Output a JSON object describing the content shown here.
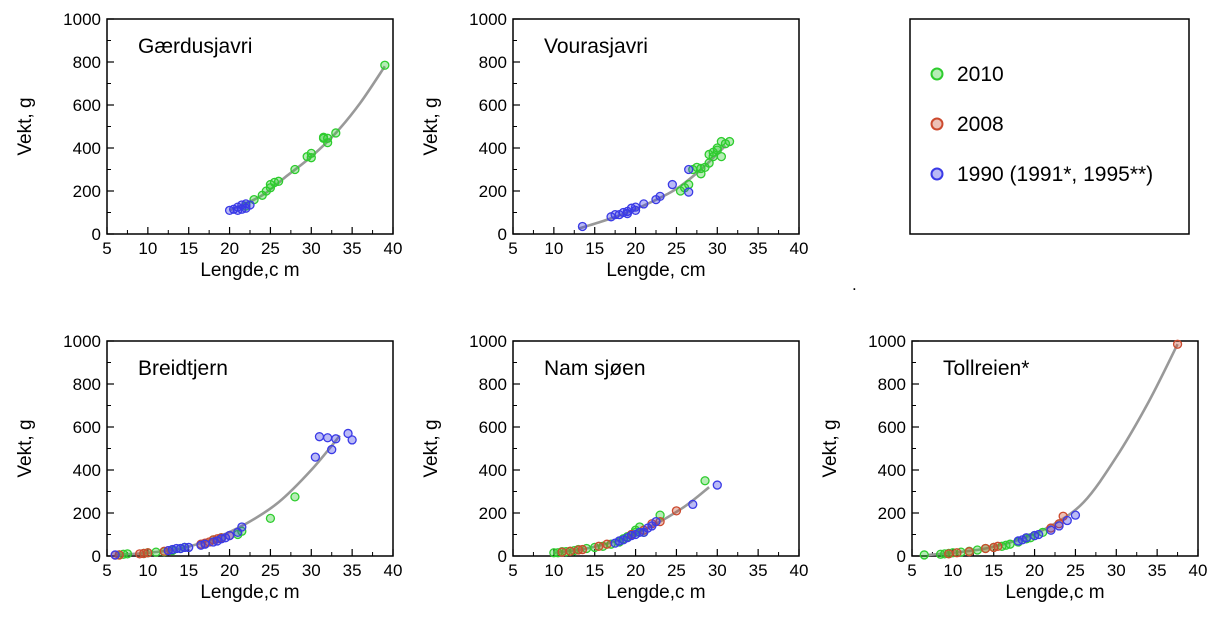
{
  "colors": {
    "2010": "#2ecc2e",
    "2008": "#cc4a2e",
    "1990": "#3a3ae6",
    "fit": "#999999"
  },
  "legend": {
    "items": [
      {
        "key": "2010",
        "label": "2010"
      },
      {
        "key": "2008",
        "label": "2008"
      },
      {
        "key": "1990",
        "label": "1990 (1991*, 1995**)"
      }
    ]
  },
  "stray_mark": ".",
  "chart_data": [
    {
      "type": "scatter",
      "title": "Gærdusjavri",
      "xlabel": "Lengde,c m",
      "ylabel": "Vekt, g",
      "xlim": [
        5,
        40
      ],
      "ylim": [
        0,
        1000
      ],
      "xticks": [
        "5",
        "10",
        "15",
        "20",
        "25",
        "30",
        "35",
        "40"
      ],
      "yticks": [
        "0",
        "200",
        "400",
        "600",
        "800",
        "1000"
      ],
      "fit": [
        [
          20,
          110
        ],
        [
          24,
          180
        ],
        [
          27,
          270
        ],
        [
          30,
          360
        ],
        [
          33,
          470
        ],
        [
          36,
          610
        ],
        [
          39,
          780
        ]
      ],
      "series": [
        {
          "key": "2010",
          "points": [
            [
              22,
              130
            ],
            [
              23,
              160
            ],
            [
              24,
              180
            ],
            [
              24.5,
              200
            ],
            [
              25,
              215
            ],
            [
              25,
              230
            ],
            [
              25.5,
              240
            ],
            [
              26,
              245
            ],
            [
              28,
              300
            ],
            [
              29.5,
              360
            ],
            [
              30,
              375
            ],
            [
              30,
              355
            ],
            [
              31.5,
              450
            ],
            [
              31.5,
              445
            ],
            [
              32,
              425
            ],
            [
              32,
              445
            ],
            [
              33,
              470
            ],
            [
              39,
              785
            ]
          ]
        },
        {
          "key": "1990",
          "points": [
            [
              20,
              110
            ],
            [
              20.5,
              115
            ],
            [
              21,
              125
            ],
            [
              21,
              110
            ],
            [
              21.5,
              115
            ],
            [
              21.5,
              135
            ],
            [
              22,
              120
            ],
            [
              22,
              140
            ],
            [
              22.5,
              135
            ]
          ]
        }
      ]
    },
    {
      "type": "scatter",
      "title": "Vourasjavri",
      "xlabel": "Lengde, cm",
      "ylabel": "Vekt, g",
      "xlim": [
        5,
        40
      ],
      "ylim": [
        0,
        1000
      ],
      "xticks": [
        "5",
        "10",
        "15",
        "20",
        "25",
        "30",
        "35",
        "40"
      ],
      "yticks": [
        "0",
        "200",
        "400",
        "600",
        "800",
        "1000"
      ],
      "fit": [
        [
          13,
          25
        ],
        [
          16,
          60
        ],
        [
          19,
          100
        ],
        [
          22,
          150
        ],
        [
          25,
          210
        ],
        [
          28,
          300
        ],
        [
          31,
          410
        ]
      ],
      "series": [
        {
          "key": "2010",
          "points": [
            [
              25.5,
              200
            ],
            [
              26,
              215
            ],
            [
              26.5,
              230
            ],
            [
              27,
              300
            ],
            [
              27.5,
              310
            ],
            [
              28,
              280
            ],
            [
              28,
              305
            ],
            [
              28.5,
              310
            ],
            [
              29,
              330
            ],
            [
              29,
              370
            ],
            [
              29.5,
              380
            ],
            [
              29.5,
              360
            ],
            [
              30,
              390
            ],
            [
              30,
              400
            ],
            [
              30.5,
              430
            ],
            [
              30.5,
              360
            ],
            [
              31,
              420
            ],
            [
              31.5,
              430
            ]
          ]
        },
        {
          "key": "1990",
          "points": [
            [
              13.5,
              35
            ],
            [
              17,
              80
            ],
            [
              17.5,
              90
            ],
            [
              18,
              90
            ],
            [
              18.5,
              100
            ],
            [
              19,
              95
            ],
            [
              19,
              105
            ],
            [
              19.5,
              120
            ],
            [
              20,
              110
            ],
            [
              20,
              125
            ],
            [
              21,
              140
            ],
            [
              22.5,
              160
            ],
            [
              23,
              175
            ],
            [
              24.5,
              230
            ],
            [
              26.5,
              300
            ],
            [
              26.5,
              195
            ]
          ]
        }
      ]
    },
    {
      "type": "scatter",
      "title": "Breidtjern",
      "xlabel": "Lengde,c m",
      "ylabel": "Vekt, g",
      "xlim": [
        5,
        40
      ],
      "ylim": [
        0,
        1000
      ],
      "xticks": [
        "5",
        "10",
        "15",
        "20",
        "25",
        "30",
        "35",
        "40"
      ],
      "yticks": [
        "0",
        "200",
        "400",
        "600",
        "800",
        "1000"
      ],
      "fit": [
        [
          6,
          5
        ],
        [
          10,
          15
        ],
        [
          14,
          35
        ],
        [
          18,
          80
        ],
        [
          22,
          150
        ],
        [
          26,
          250
        ],
        [
          30,
          400
        ],
        [
          33.5,
          560
        ]
      ],
      "series": [
        {
          "key": "2010",
          "points": [
            [
              6.5,
              5
            ],
            [
              7,
              8
            ],
            [
              7.5,
              10
            ],
            [
              9.5,
              12
            ],
            [
              10,
              15
            ],
            [
              11,
              18
            ],
            [
              12,
              20
            ],
            [
              13,
              25
            ],
            [
              14,
              35
            ],
            [
              14.5,
              40
            ],
            [
              18,
              75
            ],
            [
              19,
              85
            ],
            [
              21,
              100
            ],
            [
              21.5,
              115
            ],
            [
              25,
              175
            ],
            [
              28,
              275
            ]
          ]
        },
        {
          "key": "2008",
          "points": [
            [
              6,
              4
            ],
            [
              6.5,
              5
            ],
            [
              9,
              10
            ],
            [
              9.5,
              12
            ],
            [
              10,
              15
            ],
            [
              12,
              22
            ],
            [
              12.5,
              25
            ],
            [
              16.5,
              55
            ],
            [
              17,
              60
            ],
            [
              17.5,
              65
            ],
            [
              18,
              75
            ],
            [
              18.5,
              80
            ],
            [
              19,
              85
            ],
            [
              20,
              95
            ]
          ]
        },
        {
          "key": "1990",
          "points": [
            [
              6,
              5
            ],
            [
              12.5,
              25
            ],
            [
              13,
              30
            ],
            [
              13.5,
              35
            ],
            [
              14,
              35
            ],
            [
              14.5,
              40
            ],
            [
              15,
              40
            ],
            [
              16.5,
              50
            ],
            [
              17,
              55
            ],
            [
              18,
              65
            ],
            [
              18.5,
              70
            ],
            [
              19,
              80
            ],
            [
              19.5,
              85
            ],
            [
              20,
              95
            ],
            [
              21,
              110
            ],
            [
              21.5,
              135
            ],
            [
              30.5,
              460
            ],
            [
              31,
              555
            ],
            [
              32,
              550
            ],
            [
              32.5,
              495
            ],
            [
              33,
              545
            ],
            [
              34.5,
              570
            ],
            [
              35,
              540
            ]
          ]
        }
      ]
    },
    {
      "type": "scatter",
      "title": "Nam sjøen",
      "xlabel": "Lengde,c m",
      "ylabel": "Vekt, g",
      "xlim": [
        5,
        40
      ],
      "ylim": [
        0,
        1000
      ],
      "xticks": [
        "5",
        "10",
        "15",
        "20",
        "25",
        "30",
        "35",
        "40"
      ],
      "yticks": [
        "0",
        "200",
        "400",
        "600",
        "800",
        "1000"
      ],
      "fit": [
        [
          10,
          15
        ],
        [
          14,
          35
        ],
        [
          18,
          75
        ],
        [
          22,
          140
        ],
        [
          26,
          230
        ],
        [
          29,
          320
        ]
      ],
      "series": [
        {
          "key": "2010",
          "points": [
            [
              10,
              15
            ],
            [
              10.5,
              15
            ],
            [
              11,
              20
            ],
            [
              11.5,
              20
            ],
            [
              12,
              22
            ],
            [
              12.5,
              25
            ],
            [
              13,
              30
            ],
            [
              14,
              35
            ],
            [
              15,
              40
            ],
            [
              16,
              45
            ],
            [
              17,
              55
            ],
            [
              18,
              65
            ],
            [
              18.5,
              80
            ],
            [
              19,
              90
            ],
            [
              19.5,
              100
            ],
            [
              20,
              110
            ],
            [
              20,
              120
            ],
            [
              20.5,
              135
            ],
            [
              21,
              110
            ],
            [
              23,
              190
            ],
            [
              28.5,
              350
            ]
          ]
        },
        {
          "key": "2008",
          "points": [
            [
              11,
              18
            ],
            [
              12,
              22
            ],
            [
              13,
              28
            ],
            [
              13.5,
              30
            ],
            [
              15.5,
              45
            ],
            [
              16.5,
              55
            ],
            [
              19.5,
              100
            ],
            [
              21,
              120
            ],
            [
              22,
              150
            ],
            [
              23,
              160
            ],
            [
              25,
              210
            ]
          ]
        },
        {
          "key": "1990",
          "points": [
            [
              17.5,
              60
            ],
            [
              18,
              70
            ],
            [
              18.5,
              75
            ],
            [
              19,
              85
            ],
            [
              19.5,
              95
            ],
            [
              20,
              100
            ],
            [
              20.5,
              110
            ],
            [
              21,
              110
            ],
            [
              21.5,
              130
            ],
            [
              22,
              140
            ],
            [
              22.5,
              160
            ],
            [
              27,
              240
            ],
            [
              30,
              330
            ]
          ]
        }
      ]
    },
    {
      "type": "scatter",
      "title": "Tollreien*",
      "xlabel": "Lengde,c m",
      "ylabel": "Vekt, g",
      "xlim": [
        5,
        40
      ],
      "ylim": [
        0,
        1000
      ],
      "xticks": [
        "5",
        "10",
        "15",
        "20",
        "25",
        "30",
        "35",
        "40"
      ],
      "yticks": [
        "0",
        "200",
        "400",
        "600",
        "800",
        "1000"
      ],
      "fit": [
        [
          7,
          5
        ],
        [
          10,
          15
        ],
        [
          14,
          35
        ],
        [
          18,
          75
        ],
        [
          22,
          140
        ],
        [
          26,
          250
        ],
        [
          30,
          460
        ],
        [
          34,
          720
        ],
        [
          37.5,
          985
        ]
      ],
      "series": [
        {
          "key": "2010",
          "points": [
            [
              6.5,
              5
            ],
            [
              8.5,
              8
            ],
            [
              9,
              10
            ],
            [
              9.5,
              12
            ],
            [
              10,
              15
            ],
            [
              11,
              18
            ],
            [
              12,
              22
            ],
            [
              13,
              28
            ],
            [
              14,
              35
            ],
            [
              15,
              40
            ],
            [
              16,
              45
            ],
            [
              16.5,
              50
            ],
            [
              17,
              55
            ],
            [
              18,
              65
            ],
            [
              19,
              80
            ],
            [
              19.5,
              85
            ],
            [
              20,
              95
            ],
            [
              21,
              110
            ]
          ]
        },
        {
          "key": "2008",
          "points": [
            [
              9.5,
              10
            ],
            [
              10.5,
              15
            ],
            [
              12,
              20
            ],
            [
              14,
              35
            ],
            [
              15,
              40
            ],
            [
              15.5,
              45
            ],
            [
              22,
              130
            ],
            [
              23,
              150
            ],
            [
              23.5,
              185
            ],
            [
              37.5,
              985
            ]
          ]
        },
        {
          "key": "1990",
          "points": [
            [
              18,
              70
            ],
            [
              18.5,
              75
            ],
            [
              19,
              85
            ],
            [
              20,
              95
            ],
            [
              20.5,
              100
            ],
            [
              22,
              120
            ],
            [
              23,
              140
            ],
            [
              24,
              165
            ],
            [
              25,
              190
            ]
          ]
        }
      ]
    }
  ]
}
